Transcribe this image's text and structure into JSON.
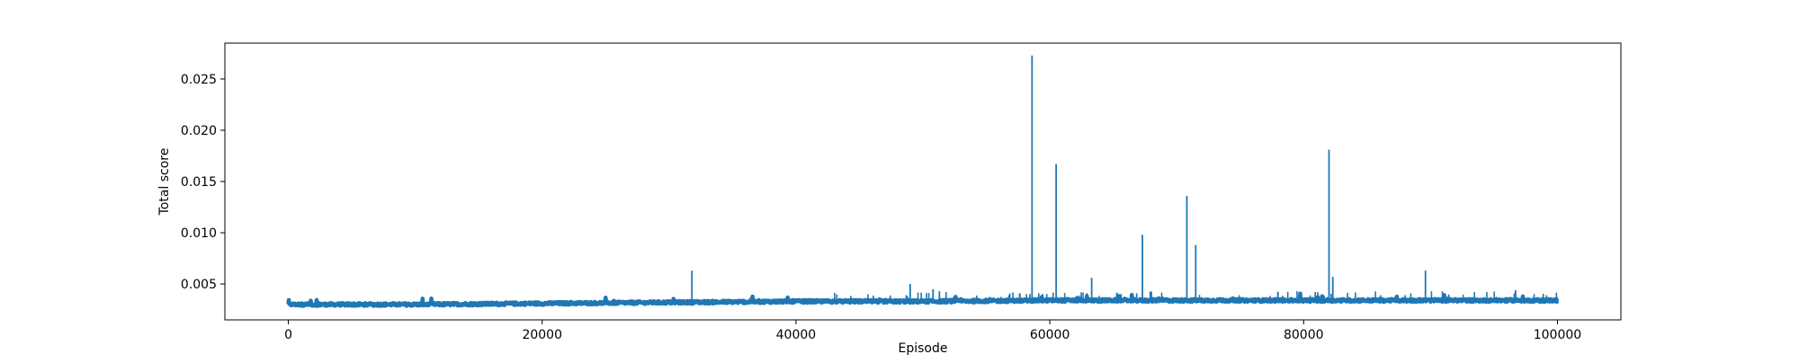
{
  "chart_data": {
    "type": "line",
    "title": "",
    "xlabel": "Episode",
    "ylabel": "Total score",
    "xlim": [
      -5000,
      105000
    ],
    "ylim": [
      0.0015,
      0.0285
    ],
    "xticks": [
      0,
      20000,
      40000,
      60000,
      80000,
      100000
    ],
    "xtick_labels": [
      "0",
      "20000",
      "40000",
      "60000",
      "80000",
      "100000"
    ],
    "yticks": [
      0.005,
      0.01,
      0.015,
      0.02,
      0.025
    ],
    "ytick_labels": [
      "0.005",
      "0.010",
      "0.015",
      "0.020",
      "0.025"
    ],
    "grid": false,
    "legend": "none",
    "series": [
      {
        "color": "#1f77b4",
        "baseline": [
          [
            0,
            0.003
          ],
          [
            10000,
            0.003
          ],
          [
            20000,
            0.0031
          ],
          [
            30000,
            0.0032
          ],
          [
            40000,
            0.0033
          ],
          [
            50000,
            0.0033
          ],
          [
            60000,
            0.0034
          ],
          [
            70000,
            0.0034
          ],
          [
            80000,
            0.0034
          ],
          [
            90000,
            0.0034
          ],
          [
            100000,
            0.0034
          ]
        ],
        "spikes": [
          [
            31800,
            0.0063
          ],
          [
            49000,
            0.005
          ],
          [
            50800,
            0.0045
          ],
          [
            51300,
            0.0043
          ],
          [
            58600,
            0.0273
          ],
          [
            60500,
            0.0167
          ],
          [
            63300,
            0.0056
          ],
          [
            67300,
            0.0098
          ],
          [
            70800,
            0.0136
          ],
          [
            71500,
            0.0088
          ],
          [
            82000,
            0.0181
          ],
          [
            82300,
            0.0057
          ],
          [
            89600,
            0.0063
          ],
          [
            96700,
            0.0044
          ]
        ]
      }
    ]
  }
}
